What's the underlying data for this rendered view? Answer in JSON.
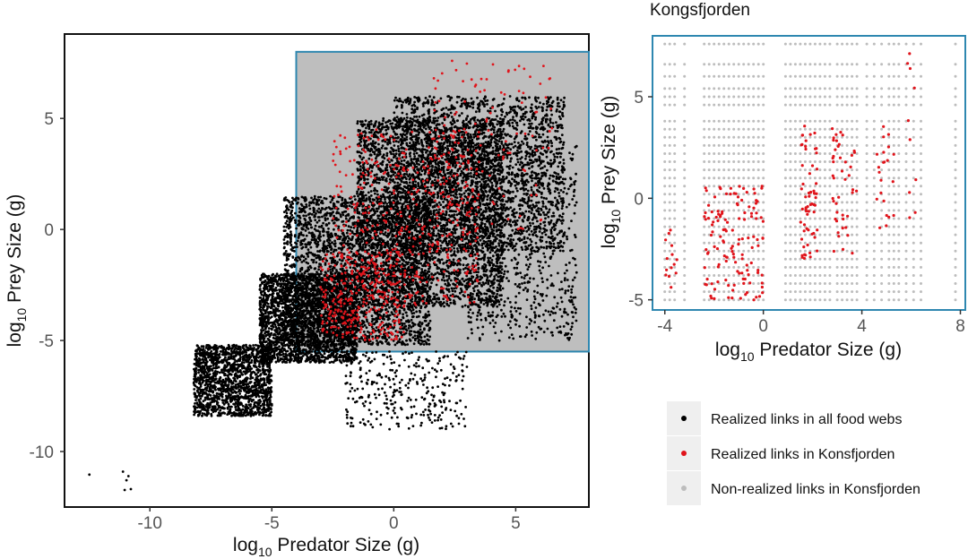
{
  "chart_data": [
    {
      "type": "scatter",
      "title": "",
      "xlabel": {
        "pre": "log",
        "sub": "10",
        "post": " Predator Size (g)"
      },
      "ylabel": {
        "pre": "log",
        "sub": "10",
        "post": " Prey Size (g)"
      },
      "xlim": [
        -13.5,
        8.0
      ],
      "ylim": [
        -12.5,
        8.8
      ],
      "xticks": [
        -10,
        -5,
        0,
        5
      ],
      "yticks": [
        -10,
        -5,
        0,
        5
      ],
      "grid": false,
      "highlight_region": {
        "x": [
          -4.0,
          8.0
        ],
        "y": [
          -5.5,
          8.0
        ],
        "fill": "#bebebe",
        "stroke": "#2e87b0"
      },
      "series": [
        {
          "name": "Realized links in all food webs",
          "color": "#000000",
          "clusters": [
            {
              "x": [
                -13,
                -10
              ],
              "y": [
                -12.1,
                -10.9
              ],
              "n": 6
            },
            {
              "x": [
                -8.2,
                -5.0
              ],
              "y": [
                -8.4,
                -5.2
              ],
              "n": 1600
            },
            {
              "x": [
                -5.5,
                -1.5
              ],
              "y": [
                -6.0,
                -2.0
              ],
              "n": 2600
            },
            {
              "x": [
                -4.5,
                1.5
              ],
              "y": [
                -5.2,
                1.5
              ],
              "n": 2800
            },
            {
              "x": [
                -1.5,
                4.5
              ],
              "y": [
                -3.5,
                5.0
              ],
              "n": 3400
            },
            {
              "x": [
                0.0,
                7.0
              ],
              "y": [
                -1.0,
                6.0
              ],
              "n": 2200
            },
            {
              "x": [
                -2.0,
                3.0
              ],
              "y": [
                -9.0,
                -5.5
              ],
              "n": 300
            },
            {
              "x": [
                3.0,
                7.5
              ],
              "y": [
                -5.0,
                4.0
              ],
              "n": 700
            }
          ]
        },
        {
          "name": "Realized links in Konsfjorden",
          "color": "#e0141b",
          "clusters": [
            {
              "x": [
                -3.0,
                0.5
              ],
              "y": [
                -5.0,
                -1.0
              ],
              "n": 300
            },
            {
              "x": [
                -2.5,
                3.5
              ],
              "y": [
                -3.5,
                4.5
              ],
              "n": 450
            },
            {
              "x": [
                1.5,
                6.5
              ],
              "y": [
                0.0,
                7.6
              ],
              "n": 120
            }
          ]
        }
      ]
    },
    {
      "type": "scatter",
      "title": "Kongsfjorden",
      "xlabel": {
        "pre": "log",
        "sub": "10",
        "post": " Predator Size (g)"
      },
      "ylabel": {
        "pre": "log",
        "sub": "10",
        "post": " Prey Size (g)"
      },
      "xlim": [
        -4.5,
        8.2
      ],
      "ylim": [
        -5.5,
        8.0
      ],
      "xticks": [
        -4,
        0,
        4,
        8
      ],
      "yticks": [
        -5,
        0,
        5
      ],
      "grid": false,
      "series": [
        {
          "name": "Non-realized links in Konsfjorden",
          "color": "#bdbdbd",
          "predator_sizes": [
            -4.0,
            -3.8,
            -3.6,
            -3.2,
            -2.4,
            -2.2,
            -2.0,
            -1.8,
            -1.6,
            -1.4,
            -1.2,
            -1.0,
            -0.8,
            -0.6,
            -0.4,
            -0.2,
            0.0,
            0.9,
            1.1,
            1.3,
            1.5,
            1.7,
            1.9,
            2.1,
            2.3,
            2.5,
            2.7,
            3.0,
            3.2,
            3.4,
            3.6,
            3.8,
            4.2,
            4.5,
            4.8,
            5.1,
            5.3,
            5.5,
            5.8,
            6.1,
            6.4,
            7.8
          ],
          "prey_sizes": [
            -5.0,
            -4.6,
            -4.2,
            -3.8,
            -3.4,
            -3.0,
            -2.6,
            -2.2,
            -1.8,
            -1.4,
            -1.0,
            -0.6,
            -0.2,
            0.2,
            0.6,
            1.0,
            1.4,
            1.8,
            2.2,
            2.6,
            3.0,
            3.4,
            3.8,
            4.6,
            5.0,
            5.4,
            6.0,
            6.6,
            7.6
          ]
        },
        {
          "name": "Realized links in Konsfjorden",
          "color": "#e0141b",
          "clusters": [
            {
              "x": [
                -4.0,
                -3.5
              ],
              "y": [
                -5.0,
                -1.5
              ],
              "n": 14
            },
            {
              "x": [
                -2.4,
                0.0
              ],
              "y": [
                -5.0,
                0.6
              ],
              "n": 130
            },
            {
              "x": [
                1.5,
                2.2
              ],
              "y": [
                -3.0,
                3.6
              ],
              "n": 60
            },
            {
              "x": [
                2.8,
                3.8
              ],
              "y": [
                -2.8,
                3.6
              ],
              "n": 45
            },
            {
              "x": [
                4.6,
                5.3
              ],
              "y": [
                -1.6,
                3.6
              ],
              "n": 22
            },
            {
              "x": [
                5.8,
                6.2
              ],
              "y": [
                -2.0,
                7.6
              ],
              "n": 10
            }
          ]
        }
      ]
    }
  ],
  "legend": {
    "items": [
      {
        "label": "Realized links in all food webs",
        "color": "#000000"
      },
      {
        "label": "Realized links in Konsfjorden",
        "color": "#e0141b"
      },
      {
        "label": "Non-realized links in Konsfjorden",
        "color": "#bdbdbd"
      }
    ]
  }
}
